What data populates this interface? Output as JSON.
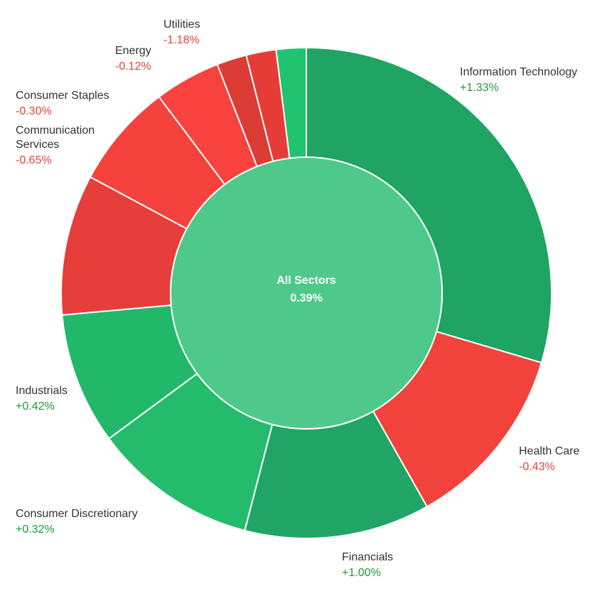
{
  "chart_data": {
    "type": "pie",
    "center": {
      "label": "All Sectors",
      "value": "0.39%",
      "color": "#4fc98b"
    },
    "colors": {
      "positive_text": "#1c9b3c",
      "negative_text": "#e8403a"
    },
    "series": [
      {
        "name": "Information Technology",
        "change": "+1.33%",
        "change_value": 1.33,
        "weight": 0.3,
        "color": "#1fa463"
      },
      {
        "name": "Health Care",
        "change": "-0.43%",
        "change_value": -0.43,
        "weight": 0.124,
        "color": "#f1423b"
      },
      {
        "name": "Financials",
        "change": "+1.00%",
        "change_value": 1.0,
        "weight": 0.124,
        "color": "#21a566"
      },
      {
        "name": "Consumer Discretionary",
        "change": "+0.32%",
        "change_value": 0.32,
        "weight": 0.11,
        "color": "#24bb6d"
      },
      {
        "name": "Industrials",
        "change": "+0.42%",
        "change_value": 0.42,
        "weight": 0.088,
        "color": "#22b86a"
      },
      {
        "name": "",
        "change": "",
        "change_value": null,
        "weight": 0.094,
        "color": "#e63e3a"
      },
      {
        "name": "Communication Services",
        "change": "-0.65%",
        "change_value": -0.65,
        "weight": 0.07,
        "color": "#f5423d"
      },
      {
        "name": "Consumer Staples",
        "change": "-0.30%",
        "change_value": -0.3,
        "weight": 0.044,
        "color": "#f7423d"
      },
      {
        "name": "Energy",
        "change": "-0.12%",
        "change_value": -0.12,
        "weight": 0.02,
        "color": "#dd3b35"
      },
      {
        "name": "Utilities",
        "change": "-1.18%",
        "change_value": -1.18,
        "weight": 0.02,
        "color": "#e63c38"
      },
      {
        "name": "",
        "change": "",
        "change_value": null,
        "weight": 0.02,
        "color": "#21c371"
      }
    ]
  }
}
